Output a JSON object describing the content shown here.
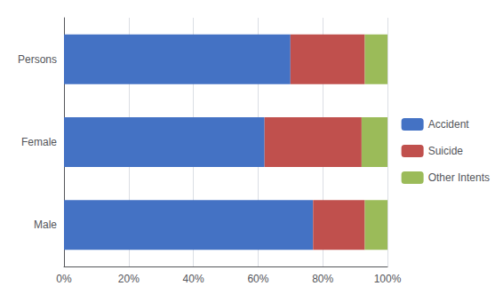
{
  "chart_data": {
    "type": "bar",
    "orientation": "horizontal",
    "stacked": true,
    "categories": [
      "Persons",
      "Female",
      "Male"
    ],
    "series": [
      {
        "name": "Accident",
        "color": "#4472C4",
        "values": [
          70,
          62,
          77
        ]
      },
      {
        "name": "Suicide",
        "color": "#C0504D",
        "values": [
          23,
          30,
          16
        ]
      },
      {
        "name": "Other Intents",
        "color": "#9BBB59",
        "values": [
          7,
          8,
          7
        ]
      }
    ],
    "xlim": [
      0,
      100
    ],
    "xticks": [
      {
        "value": 0,
        "label": "0%"
      },
      {
        "value": 20,
        "label": "20%"
      },
      {
        "value": 40,
        "label": "40%"
      },
      {
        "value": 60,
        "label": "60%"
      },
      {
        "value": 80,
        "label": "80%"
      },
      {
        "value": 100,
        "label": "100%"
      }
    ],
    "grid": true,
    "legend": "right"
  }
}
